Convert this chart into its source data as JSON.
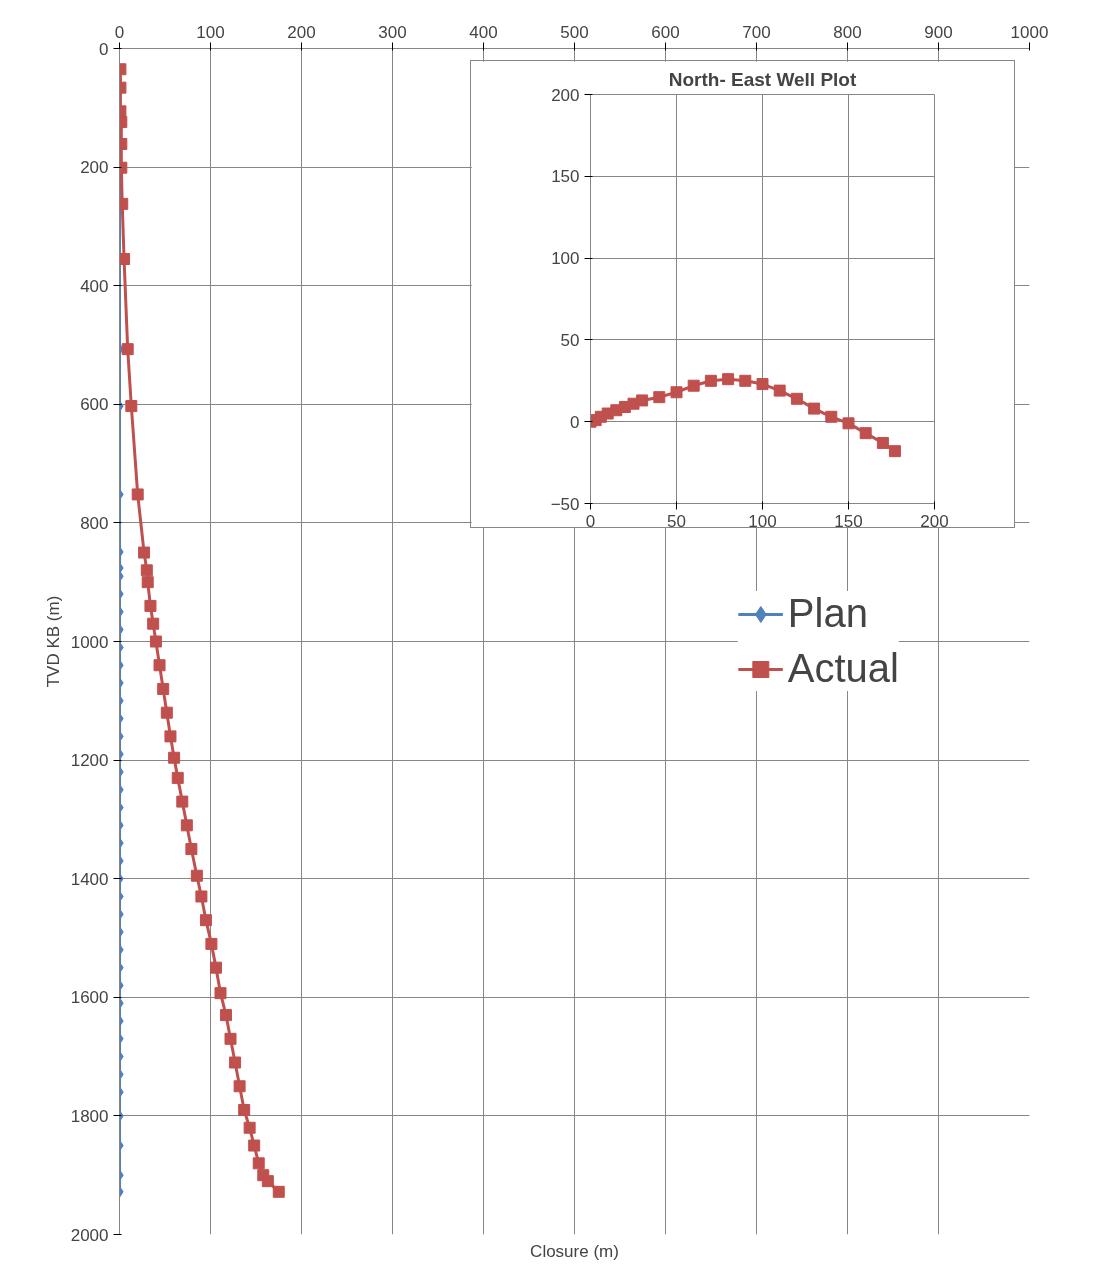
{
  "chart_data": [
    {
      "type": "line",
      "xlabel": "Closure (m)",
      "ylabel": "TVD KB (m)",
      "xlim": [
        0,
        1000
      ],
      "xticks": [
        0,
        100,
        200,
        300,
        400,
        500,
        600,
        700,
        800,
        900,
        1000
      ],
      "ylim": [
        2000,
        0
      ],
      "yticks": [
        0,
        200,
        400,
        600,
        800,
        1000,
        1200,
        1400,
        1600,
        1800,
        2000
      ],
      "grid": true,
      "legend": "right",
      "line_style": "solid",
      "series": [
        {
          "name": "Plan",
          "color": "#4f81bd",
          "marker": "diamond",
          "x": [
            0,
            0,
            0,
            0,
            0,
            0,
            0,
            0,
            0,
            0,
            0,
            0,
            0,
            0,
            0,
            0,
            0,
            0,
            0,
            0,
            0,
            0,
            0,
            0,
            0,
            0,
            0,
            0,
            0,
            0,
            0,
            0,
            0,
            0,
            0,
            0,
            0,
            0,
            0,
            0,
            0,
            0,
            0
          ],
          "values": [
            35,
            201,
            262,
            354,
            507,
            603,
            752,
            849,
            876,
            890,
            920,
            950,
            980,
            1010,
            1040,
            1070,
            1100,
            1130,
            1160,
            1190,
            1220,
            1250,
            1280,
            1310,
            1340,
            1370,
            1400,
            1430,
            1460,
            1490,
            1520,
            1550,
            1580,
            1610,
            1640,
            1670,
            1700,
            1730,
            1760,
            1800,
            1850,
            1900,
            1928
          ]
        },
        {
          "name": "Actual",
          "color": "#c0504d",
          "marker": "square",
          "x": [
            1,
            1,
            1,
            2,
            2,
            2,
            3,
            5,
            9,
            13,
            20,
            27,
            30,
            31,
            34,
            37,
            40,
            44,
            48,
            52,
            56,
            60,
            64,
            69,
            74,
            79,
            85,
            90,
            95,
            101,
            106,
            111,
            117,
            122,
            127,
            132,
            137,
            143,
            148,
            153,
            158,
            163,
            175
          ],
          "values": [
            35,
            66,
            106,
            124,
            161,
            201,
            262,
            355,
            507,
            603,
            752,
            850,
            880,
            900,
            940,
            970,
            1000,
            1040,
            1080,
            1120,
            1160,
            1196,
            1230,
            1270,
            1310,
            1350,
            1395,
            1430,
            1470,
            1510,
            1550,
            1593,
            1630,
            1670,
            1710,
            1750,
            1790,
            1820,
            1850,
            1880,
            1900,
            1910,
            1928
          ]
        }
      ]
    },
    {
      "type": "line",
      "title": "North- East Well Plot",
      "xlim": [
        0,
        200
      ],
      "xticks": [
        0,
        50,
        100,
        150,
        200
      ],
      "ylim": [
        -50,
        200
      ],
      "yticks": [
        -50,
        0,
        50,
        100,
        150,
        200
      ],
      "grid": true,
      "line_style": "solid",
      "series": [
        {
          "color": "#c0504d",
          "marker": "square",
          "x": [
            0,
            3,
            6,
            10,
            15,
            20,
            25,
            30,
            40,
            50,
            60,
            70,
            80,
            90,
            100,
            110,
            120,
            130,
            140,
            150,
            160,
            170,
            177
          ],
          "values": [
            0,
            1,
            3,
            5,
            7,
            9,
            11,
            13,
            15,
            18,
            22,
            25,
            26,
            25,
            23,
            19,
            14,
            8,
            3,
            -1,
            -7,
            -13,
            -18
          ]
        }
      ]
    }
  ]
}
